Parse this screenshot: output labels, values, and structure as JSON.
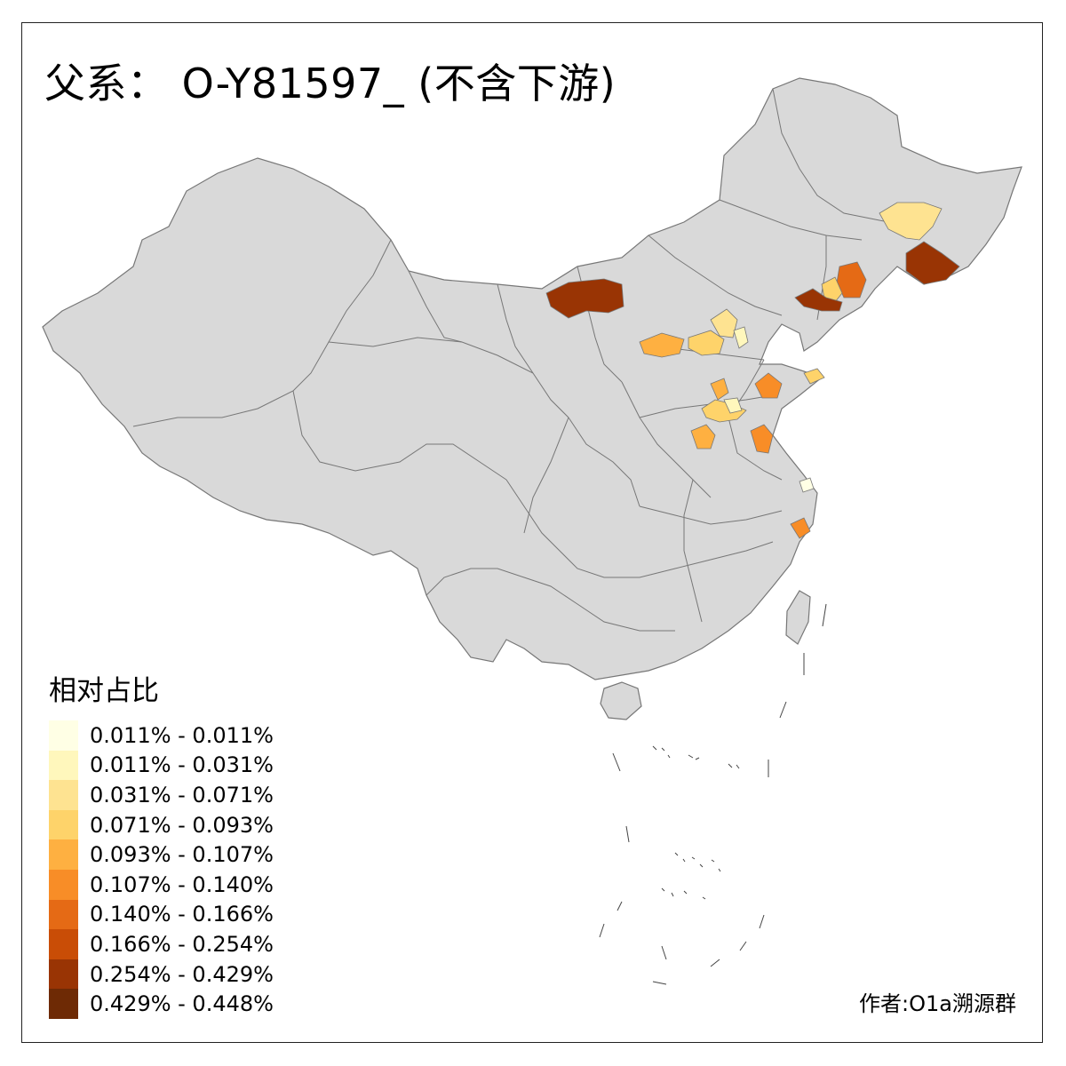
{
  "title": "父系： O-Y81597_ (不含下游)",
  "legend": {
    "title": "相对占比",
    "items": [
      {
        "label": "0.011% - 0.011%",
        "color": "#FFFFE5"
      },
      {
        "label": "0.011% - 0.031%",
        "color": "#FFF7BC"
      },
      {
        "label": "0.031% - 0.071%",
        "color": "#FEE391"
      },
      {
        "label": "0.071% - 0.093%",
        "color": "#FED36A"
      },
      {
        "label": "0.093% - 0.107%",
        "color": "#FEB041"
      },
      {
        "label": "0.107% - 0.140%",
        "color": "#F88D27"
      },
      {
        "label": "0.140% - 0.166%",
        "color": "#E56A15"
      },
      {
        "label": "0.166% - 0.254%",
        "color": "#C94D06"
      },
      {
        "label": "0.254% - 0.429%",
        "color": "#993404"
      },
      {
        "label": "0.429% - 0.448%",
        "color": "#6E2A05"
      }
    ]
  },
  "credit": "作者:O1a溯源群",
  "colors": {
    "land": "#D9D9D9",
    "border": "#777777",
    "frame": "#222222"
  }
}
